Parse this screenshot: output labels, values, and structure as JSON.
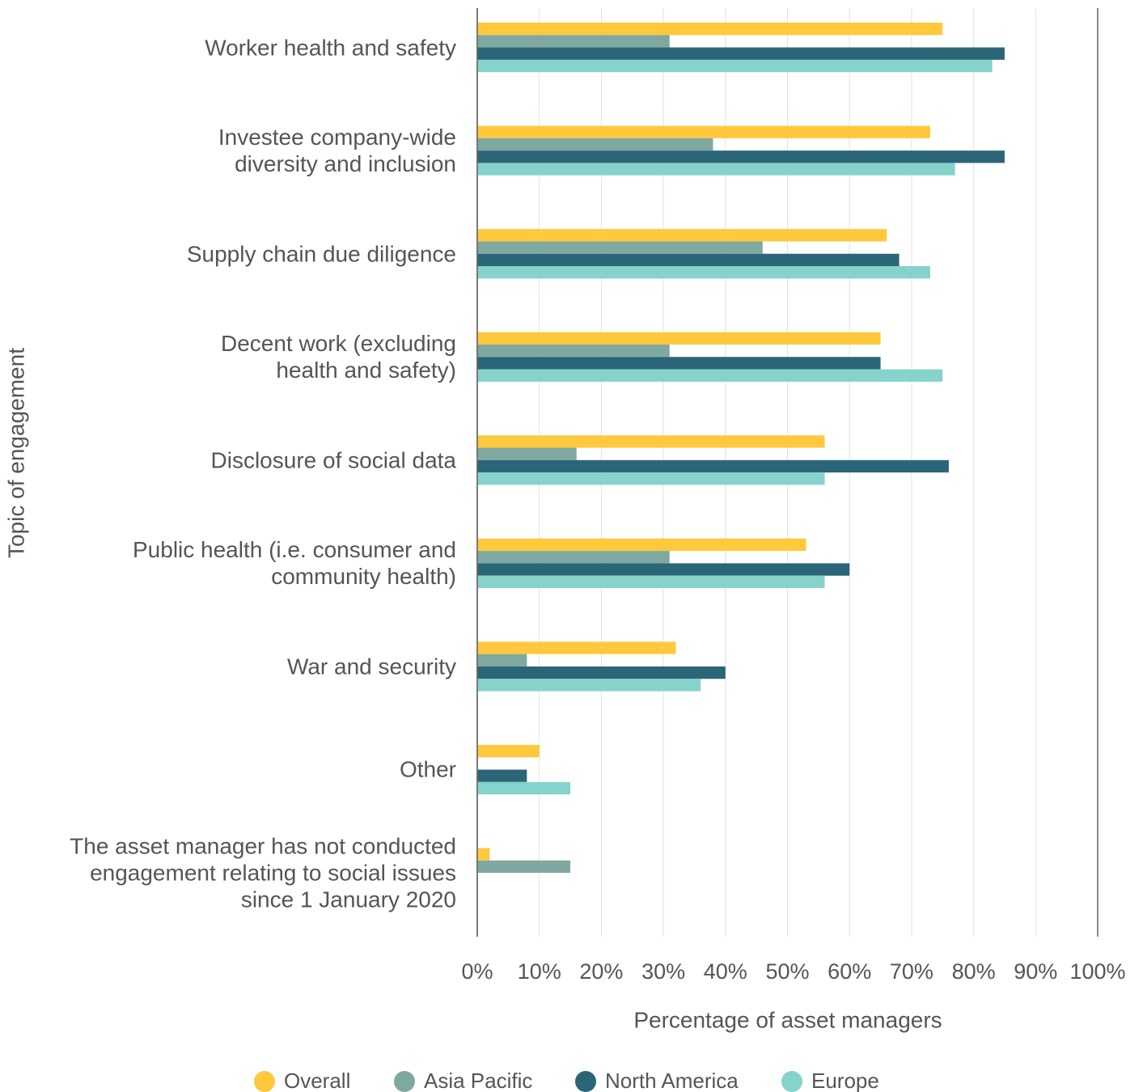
{
  "chart_data": {
    "type": "hbar",
    "x_label": "Percentage of asset managers",
    "y_label": "Topic of engagement",
    "categories": [
      "Worker health and safety",
      "Investee company-wide diversity and inclusion",
      "Supply chain due diligence",
      "Decent work (excluding health and safety)",
      "Disclosure of social data",
      "Public health (i.e. consumer and community health)",
      "War and security",
      "Other",
      "The asset manager has not conducted engagement relating to social issues since 1 January 2020"
    ],
    "series": [
      {
        "name": "Overall",
        "color": "#FFC83D",
        "values": [
          75,
          73,
          66,
          65,
          56,
          53,
          32,
          10,
          2
        ]
      },
      {
        "name": "Asia Pacific",
        "color": "#7FA9A0",
        "values": [
          31,
          38,
          46,
          31,
          16,
          31,
          8,
          0,
          15
        ]
      },
      {
        "name": "North America",
        "color": "#2B6678",
        "values": [
          85,
          85,
          68,
          65,
          76,
          60,
          40,
          8,
          0
        ]
      },
      {
        "name": "Europe",
        "color": "#85D3CA",
        "values": [
          83,
          77,
          73,
          75,
          56,
          56,
          36,
          15,
          0
        ]
      }
    ],
    "xlim": [
      0,
      100
    ],
    "xticks": [
      {
        "value": 0,
        "label": "0%"
      },
      {
        "value": 10,
        "label": "10%"
      },
      {
        "value": 20,
        "label": "20%"
      },
      {
        "value": 30,
        "label": "30%"
      },
      {
        "value": 40,
        "label": "40%"
      },
      {
        "value": 50,
        "label": "50%"
      },
      {
        "value": 60,
        "label": "60%"
      },
      {
        "value": 70,
        "label": "70%"
      },
      {
        "value": 80,
        "label": "80%"
      },
      {
        "value": 90,
        "label": "90%"
      },
      {
        "value": 100,
        "label": "100%"
      }
    ],
    "grid": true,
    "legend": "bottom"
  }
}
